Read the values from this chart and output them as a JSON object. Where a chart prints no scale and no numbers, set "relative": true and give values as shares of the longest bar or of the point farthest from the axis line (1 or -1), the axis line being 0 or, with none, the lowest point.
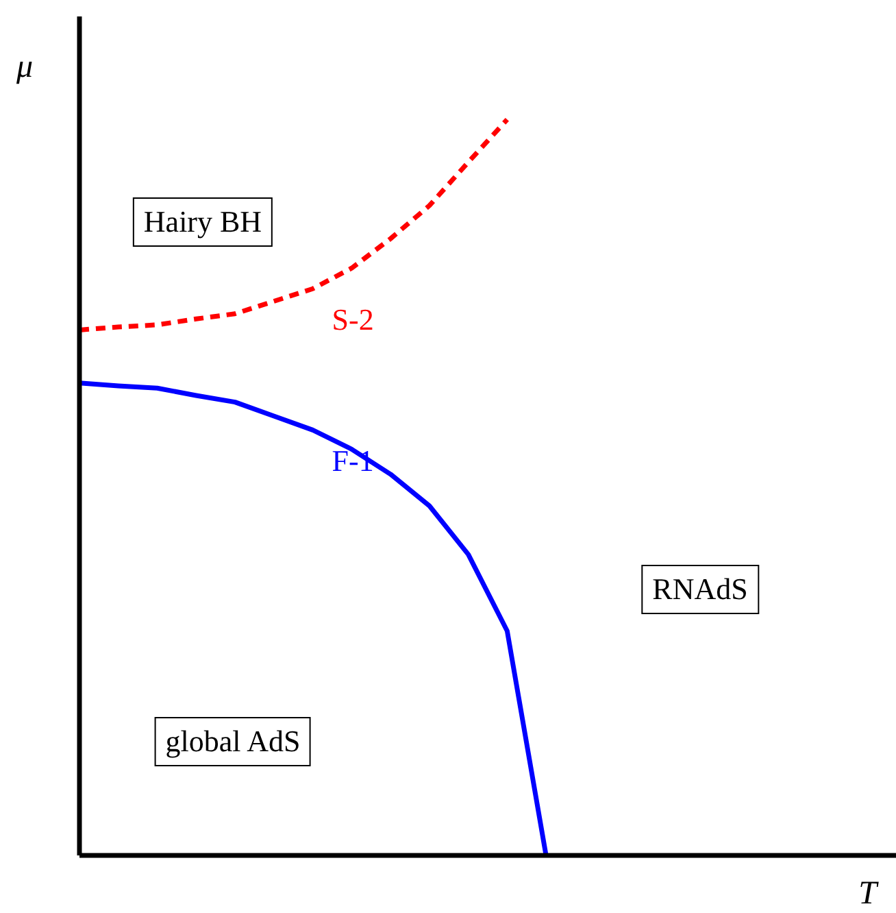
{
  "chart_data": {
    "type": "line",
    "relative": true,
    "xlabel": "T",
    "ylabel": "μ",
    "categories": [
      null,
      null,
      null,
      null,
      null,
      null,
      null,
      null,
      null,
      null,
      null,
      null,
      null,
      null,
      null,
      null,
      null,
      null,
      null,
      null,
      null,
      null
    ],
    "series": [
      {
        "name": "S-2",
        "color": "#ff0000",
        "line_style": "dashed",
        "values": [
          0.714,
          0.718,
          0.721,
          0.729,
          0.736,
          0.753,
          0.77,
          0.798,
          0.838,
          0.883,
          0.942,
          1,
          null,
          null,
          null,
          null,
          null,
          null,
          null,
          null,
          null,
          null
        ]
      },
      {
        "name": "F-1",
        "color": "#0000ff",
        "line_style": "solid",
        "values": [
          0.642,
          0.638,
          0.635,
          0.625,
          0.616,
          0.597,
          0.578,
          0.552,
          0.518,
          0.475,
          0.409,
          0.305,
          0,
          null,
          null,
          null,
          null,
          null,
          null,
          null,
          null,
          null
        ]
      }
    ],
    "annotations": [
      "Hairy BH",
      "global AdS",
      "RNAdS"
    ],
    "legend": false,
    "grid": false,
    "marker": "none"
  }
}
